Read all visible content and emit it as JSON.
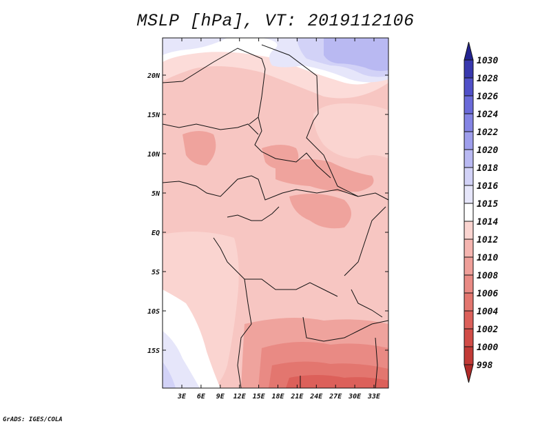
{
  "title": "MSLP [hPa], VT: 2019112106",
  "credit": "GrADS: IGES/COLA",
  "map": {
    "lat_labels": [
      {
        "label": "20N",
        "value": 20
      },
      {
        "label": "15N",
        "value": 15
      },
      {
        "label": "10N",
        "value": 10
      },
      {
        "label": "5N",
        "value": 5
      },
      {
        "label": "EQ",
        "value": 0
      },
      {
        "label": "5S",
        "value": -5
      },
      {
        "label": "10S",
        "value": -10
      },
      {
        "label": "15S",
        "value": -15
      }
    ],
    "lon_labels": [
      {
        "label": "3E",
        "value": 3
      },
      {
        "label": "6E",
        "value": 6
      },
      {
        "label": "9E",
        "value": 9
      },
      {
        "label": "12E",
        "value": 12
      },
      {
        "label": "15E",
        "value": 15
      },
      {
        "label": "18E",
        "value": 18
      },
      {
        "label": "21E",
        "value": 21
      },
      {
        "label": "24E",
        "value": 24
      },
      {
        "label": "27E",
        "value": 27
      },
      {
        "label": "30E",
        "value": 30
      },
      {
        "label": "33E",
        "value": 33
      }
    ]
  },
  "colorbar": {
    "labels": [
      "998",
      "1000",
      "1002",
      "1004",
      "1006",
      "1008",
      "1010",
      "1012",
      "1014",
      "1015",
      "1016",
      "1018",
      "1020",
      "1022",
      "1024",
      "1026",
      "1028",
      "1030"
    ],
    "colors": [
      "#b02a28",
      "#c23a36",
      "#d14c47",
      "#dc605a",
      "#e3766f",
      "#e98a84",
      "#ef9f99",
      "#f5b5b0",
      "#fad4d0",
      "#ffffff",
      "#e6e6fa",
      "#d2d2f7",
      "#b9b9f2",
      "#9e9eec",
      "#8484e4",
      "#6a6ad9",
      "#5050c8",
      "#3838ae",
      "#232390"
    ]
  }
}
